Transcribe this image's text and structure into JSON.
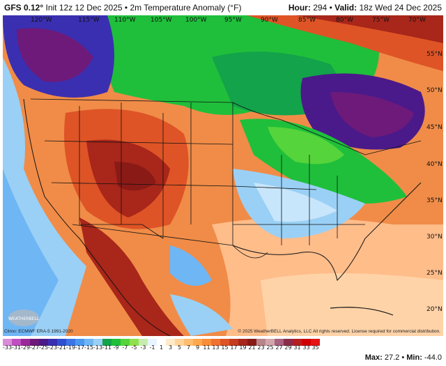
{
  "header": {
    "model": "GFS 0.12°",
    "init": "Init 12z 12 Dec 2025",
    "separator": "•",
    "product": "2m Temperature Anomaly (°F)",
    "hour_label": "Hour:",
    "hour": "294",
    "valid_label": "Valid:",
    "valid": "18z Wed 24 Dec 2025"
  },
  "map": {
    "longitude_labels": [
      "120°W",
      "115°W",
      "110°W",
      "105°W",
      "100°W",
      "95°W",
      "90°W",
      "85°W",
      "80°W",
      "75°W",
      "70°W"
    ],
    "latitude_labels": [
      "55°N",
      "50°N",
      "45°N",
      "40°N",
      "35°N",
      "30°N",
      "25°N",
      "20°N"
    ],
    "climo_credit": "Climo: ECMWF ERA-5 1991-2020",
    "copyright": "© 2025 WeatherBELL Analytics, LLC All rights reserved. License required for commercial distribution.",
    "logo_text": "WEATHERBELL"
  },
  "colorbar": {
    "ticks": [
      "-33",
      "-31",
      "-29",
      "-27",
      "-25",
      "-23",
      "-21",
      "-19",
      "-17",
      "-15",
      "-13",
      "-11",
      "-9",
      "-7",
      "-5",
      "-3",
      "-1",
      "1",
      "3",
      "5",
      "7",
      "9",
      "11",
      "13",
      "15",
      "17",
      "19",
      "21",
      "23",
      "25",
      "27",
      "29",
      "31",
      "33",
      "35"
    ],
    "colors": [
      "#d98cd9",
      "#c050c0",
      "#9a2a9a",
      "#6e1a7a",
      "#4b1a8a",
      "#3a2fb0",
      "#2f4fd0",
      "#3b74e6",
      "#4c97f0",
      "#6fb6f5",
      "#9ad0f5",
      "#13a34a",
      "#1fbf3b",
      "#55d43b",
      "#8fe04e",
      "#c8ecb0",
      "#e8f4ff",
      "#ffffff",
      "#ffe9c7",
      "#ffd39a",
      "#ffbd6f",
      "#ffa84e",
      "#f98e3a",
      "#ef7230",
      "#de5426",
      "#c73b1f",
      "#a8261a",
      "#8a1a16",
      "#b8858a",
      "#d2a7ab",
      "#a9627f",
      "#8b2c4b",
      "#b62020",
      "#d10000",
      "#e61414"
    ]
  },
  "stats": {
    "max_label": "Max:",
    "max": "27.2",
    "min_label": "Min:",
    "min": "-44.0"
  }
}
